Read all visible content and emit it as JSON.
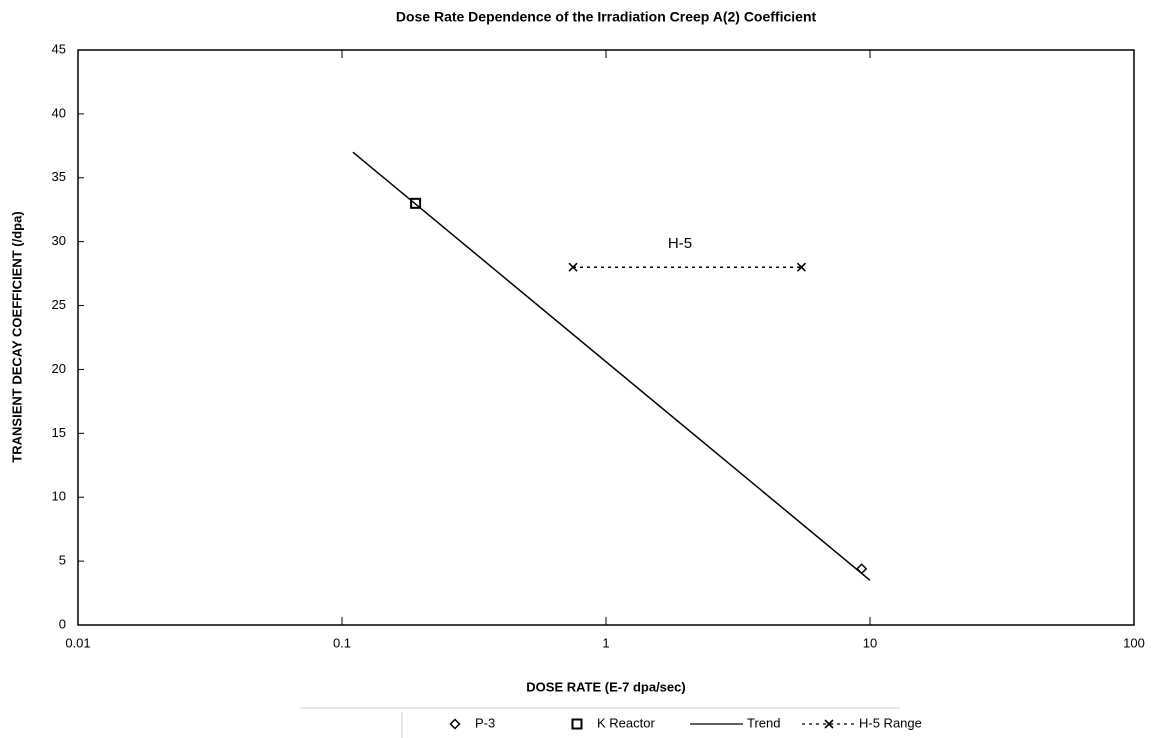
{
  "chart_data": {
    "type": "scatter",
    "title": "Dose Rate Dependence of the Irradiation Creep A(2) Coefficient",
    "x_label": "DOSE RATE (E-7 dpa/sec)",
    "y_label": "TRANSIENT DECAY COEFFICIENT (/dpa)",
    "annotation": "H-5",
    "xscale": "log",
    "xlim": [
      0.01,
      100
    ],
    "xticks": [
      0.01,
      0.1,
      1,
      10,
      100
    ],
    "ylim": [
      0,
      45
    ],
    "yticks": [
      0,
      5,
      10,
      15,
      20,
      25,
      30,
      35,
      40,
      45
    ],
    "series": [
      {
        "name": "P-3",
        "color": "#000000",
        "style": "diamond",
        "x": [
          9.3
        ],
        "y": [
          4.4
        ]
      },
      {
        "name": "K Reactor",
        "color": "#000000",
        "style": "square",
        "x": [
          0.19
        ],
        "y": [
          33
        ]
      },
      {
        "name": "Trend",
        "color": "#000000",
        "style": "line",
        "x": [
          0.11,
          10
        ],
        "y": [
          37,
          3.5
        ]
      },
      {
        "name": "H-5 Range",
        "color": "#000000",
        "style": "dashed-x",
        "x": [
          0.75,
          5.5
        ],
        "y": [
          28,
          28
        ]
      }
    ]
  }
}
